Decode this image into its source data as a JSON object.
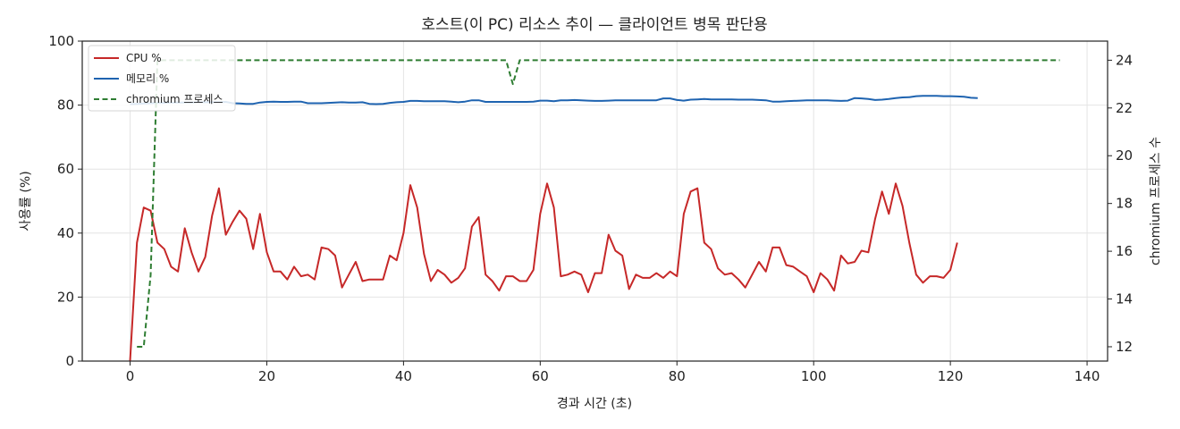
{
  "chart_data": {
    "type": "line",
    "title": "호스트(이 PC) 리소스 추이 — 클라이언트 병목 판단용",
    "xlabel": "경과 시간 (초)",
    "ylabel": "사용률 (%)",
    "y2label": "chromium 프로세스 수",
    "xlim": [
      -7,
      143
    ],
    "ylim": [
      0,
      100
    ],
    "y2lim": [
      11.4,
      24.8
    ],
    "xticks": [
      "0",
      "20",
      "40",
      "60",
      "80",
      "100",
      "120",
      "140"
    ],
    "yticks": [
      "0",
      "20",
      "40",
      "60",
      "80",
      "100"
    ],
    "y2ticks": [
      "12",
      "14",
      "16",
      "18",
      "20",
      "22",
      "24"
    ],
    "grid": true,
    "legend_position": "top-left",
    "series": [
      {
        "name": "CPU %",
        "axis": "left",
        "color": "#c62828",
        "style": "solid",
        "values": [
          0,
          37,
          48,
          47,
          37,
          35,
          29.5,
          28,
          41.5,
          34,
          28,
          32.5,
          45.5,
          54,
          39.5,
          43.5,
          47,
          44.5,
          35,
          46,
          34,
          28,
          28,
          25.5,
          29.5,
          26.5,
          27,
          25.5,
          35.5,
          35,
          33,
          23,
          27,
          31,
          25,
          25.5,
          25.5,
          25.5,
          33,
          31.5,
          40,
          55,
          48,
          33.5,
          25,
          28.5,
          27,
          24.5,
          26,
          29,
          42,
          45,
          27,
          25,
          22,
          26.5,
          26.5,
          25,
          25,
          28.5,
          46,
          55.5,
          48,
          26.5,
          27,
          28,
          27,
          21.5,
          27.5,
          27.5,
          39.5,
          34.5,
          33,
          22.5,
          27,
          26,
          26,
          27.5,
          26,
          28,
          26.5,
          46,
          53,
          54,
          37,
          35,
          29,
          27,
          27.5,
          25.5,
          23,
          27,
          31,
          28,
          35.5,
          35.5,
          30,
          29.5,
          28,
          26.5,
          21.5,
          27.5,
          25.5,
          22,
          33,
          30.5,
          31,
          34.5,
          34,
          44.5,
          53,
          46,
          55.5,
          48.5,
          37,
          27,
          24.5,
          26.5,
          26.5,
          26,
          28.5,
          37
        ]
      },
      {
        "name": "메모리 %",
        "axis": "left",
        "color": "#1e63b0",
        "style": "solid",
        "values": [
          80.3,
          80.4,
          80.5,
          80.6,
          80.7,
          80.7,
          80.8,
          80.8,
          80.8,
          80.8,
          80.9,
          80.9,
          80.9,
          80.9,
          81,
          80.6,
          80.5,
          80.4,
          80.4,
          80.8,
          81,
          81.1,
          81,
          81,
          81.1,
          81.1,
          80.6,
          80.6,
          80.6,
          80.7,
          80.8,
          80.9,
          80.8,
          80.8,
          80.9,
          80.4,
          80.3,
          80.4,
          80.7,
          80.9,
          81,
          81.3,
          81.3,
          81.2,
          81.2,
          81.2,
          81.2,
          81.1,
          80.9,
          81.1,
          81.5,
          81.5,
          81,
          81,
          81,
          81,
          81,
          81,
          81,
          81.1,
          81.4,
          81.4,
          81.2,
          81.5,
          81.5,
          81.6,
          81.5,
          81.4,
          81.3,
          81.3,
          81.4,
          81.5,
          81.5,
          81.5,
          81.5,
          81.5,
          81.5,
          81.5,
          82.1,
          82.1,
          81.6,
          81.4,
          81.7,
          81.8,
          81.9,
          81.8,
          81.8,
          81.8,
          81.8,
          81.7,
          81.7,
          81.7,
          81.6,
          81.5,
          81.1,
          81.1,
          81.2,
          81.3,
          81.4,
          81.5,
          81.5,
          81.5,
          81.5,
          81.4,
          81.3,
          81.4,
          82.2,
          82.1,
          81.9,
          81.6,
          81.7,
          81.9,
          82.2,
          82.4,
          82.5,
          82.8,
          82.9,
          82.9,
          82.9,
          82.8,
          82.8,
          82.7,
          82.6,
          82.3,
          82.2
        ]
      },
      {
        "name": "chromium 프로세스",
        "axis": "right",
        "color": "#2e7d32",
        "style": "dashed",
        "points": [
          [
            1,
            12
          ],
          [
            2,
            12
          ],
          [
            3,
            15
          ],
          [
            4,
            24
          ],
          [
            55,
            24
          ],
          [
            56,
            23
          ],
          [
            57,
            24
          ],
          [
            136,
            24
          ]
        ]
      }
    ]
  }
}
